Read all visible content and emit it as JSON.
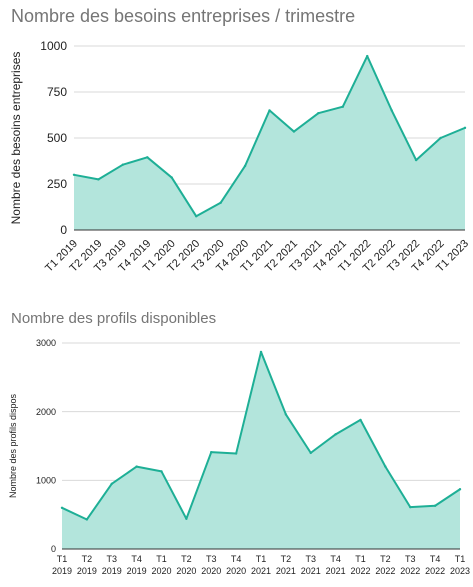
{
  "colors": {
    "fill": "#b3e5dc",
    "line": "#1eaf96"
  },
  "chart_data": [
    {
      "type": "area",
      "title": "Nombre des besoins entreprises / trimestre",
      "xlabel": "",
      "ylabel": "Nombre des besoins entreprises",
      "categories": [
        "T1 2019",
        "T2 2019",
        "T3 2019",
        "T4 2019",
        "T1 2020",
        "T2 2020",
        "T3 2020",
        "T4 2020",
        "T1 2021",
        "T2 2021",
        "T3 2021",
        "T4 2021",
        "T1 2022",
        "T2 2022",
        "T3 2022",
        "T4 2022",
        "T1 2023"
      ],
      "values": [
        300,
        275,
        355,
        395,
        285,
        75,
        148,
        348,
        650,
        535,
        635,
        670,
        945,
        650,
        380,
        500,
        555
      ],
      "ylim": [
        0,
        1000
      ],
      "yticks": [
        "0",
        "250",
        "500",
        "750",
        "1000"
      ],
      "grid": true,
      "legend": "none"
    },
    {
      "type": "area",
      "title": "Nombre des profils disponibles",
      "xlabel": "",
      "ylabel": "Nombre des profils dispos",
      "categories": [
        "T1 2019",
        "T2 2019",
        "T3 2019",
        "T4 2019",
        "T1 2020",
        "T2 2020",
        "T3 2020",
        "T4 2020",
        "T1 2021",
        "T2 2021",
        "T3 2021",
        "T4 2021",
        "T1 2022",
        "T2 2022",
        "T3 2022",
        "T4 2022",
        "T1 2023"
      ],
      "values": [
        600,
        430,
        950,
        1200,
        1130,
        440,
        1410,
        1390,
        2870,
        1960,
        1400,
        1670,
        1880,
        1200,
        610,
        630,
        870
      ],
      "ylim": [
        0,
        3000
      ],
      "yticks": [
        "0",
        "1000",
        "2000",
        "3000"
      ],
      "grid": true,
      "legend": "none"
    }
  ]
}
